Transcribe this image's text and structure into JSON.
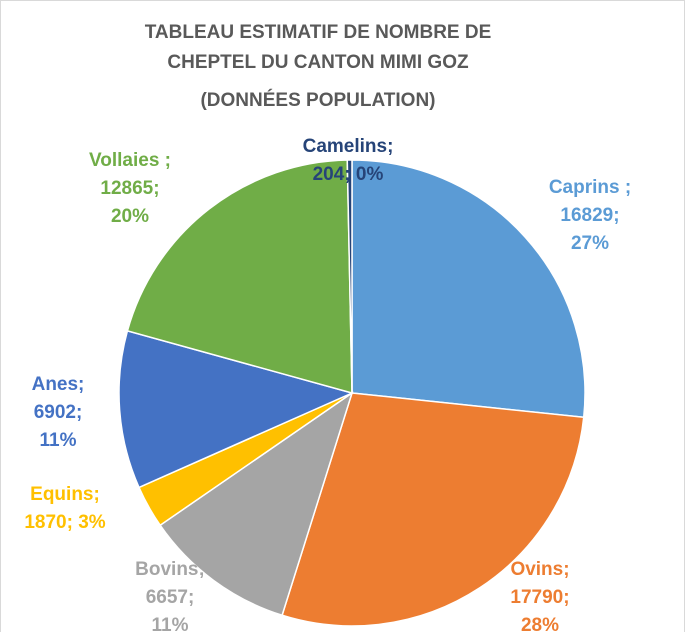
{
  "chart_data": {
    "type": "pie",
    "title": "TABLEAU ESTIMATIF DE NOMBRE DE CHEPTEL DU CANTON MIMI GOZ",
    "subtitle": "(DONNÉES POPULATION)",
    "categories": [
      "Caprins ;",
      "Ovins;",
      "Bovins;",
      "Equins;",
      "Anes;",
      "Vollaies ;",
      "Camelins;"
    ],
    "values": [
      16829,
      17790,
      6657,
      1870,
      6902,
      12865,
      204
    ],
    "value_labels": [
      "16829; 27%",
      "17790; 28%",
      "6657; 11%",
      "1870; 3%",
      "6902; 11%",
      "12865; 20%",
      "204; 0%"
    ],
    "colors": [
      "#5b9bd5",
      "#ed7d31",
      "#a5a5a5",
      "#ffc000",
      "#4472c4",
      "#70ad47",
      "#264478"
    ]
  }
}
